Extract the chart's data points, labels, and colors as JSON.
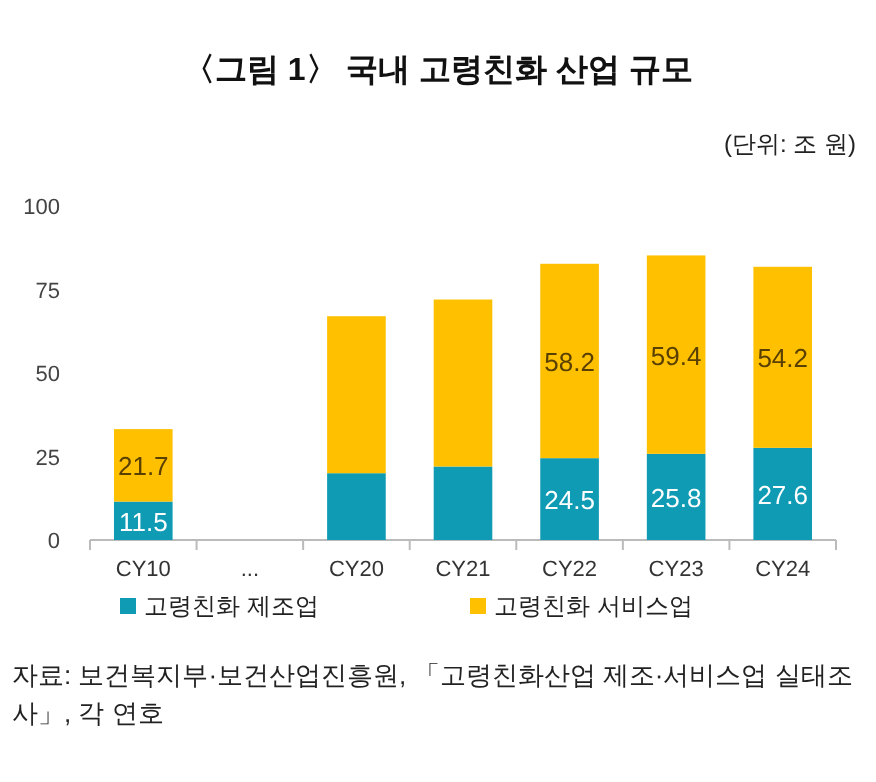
{
  "chart_data": {
    "type": "bar",
    "title": "〈그림 1〉 국내 고령친화 산업 규모",
    "subtitle": "(단위: 조 원)",
    "stacked": true,
    "categories": [
      "CY10",
      "...",
      "CY20",
      "CY21",
      "CY22",
      "CY23",
      "CY24"
    ],
    "series": [
      {
        "name": "고령친화 제조업",
        "color": "#0f9bb4",
        "values": [
          11.5,
          null,
          20,
          22,
          24.5,
          25.8,
          27.6
        ],
        "value_labels": [
          "11.5",
          null,
          null,
          null,
          "24.5",
          "25.8",
          "27.6"
        ]
      },
      {
        "name": "고령친화 서비스업",
        "color": "#ffc000",
        "values": [
          21.7,
          null,
          47,
          50,
          58.2,
          59.4,
          54.2
        ],
        "value_labels": [
          "21.7",
          null,
          null,
          null,
          "58.2",
          "59.4",
          "54.2"
        ]
      }
    ],
    "ylim": [
      0,
      100
    ],
    "yticks": [
      0,
      25,
      50,
      75,
      100
    ],
    "legend": "bottom",
    "annotations": [
      "자료: 보건복지부·보건산업진흥원, 「고령친화산업 제조·서비스업 실태조사」, 각 연호"
    ]
  }
}
